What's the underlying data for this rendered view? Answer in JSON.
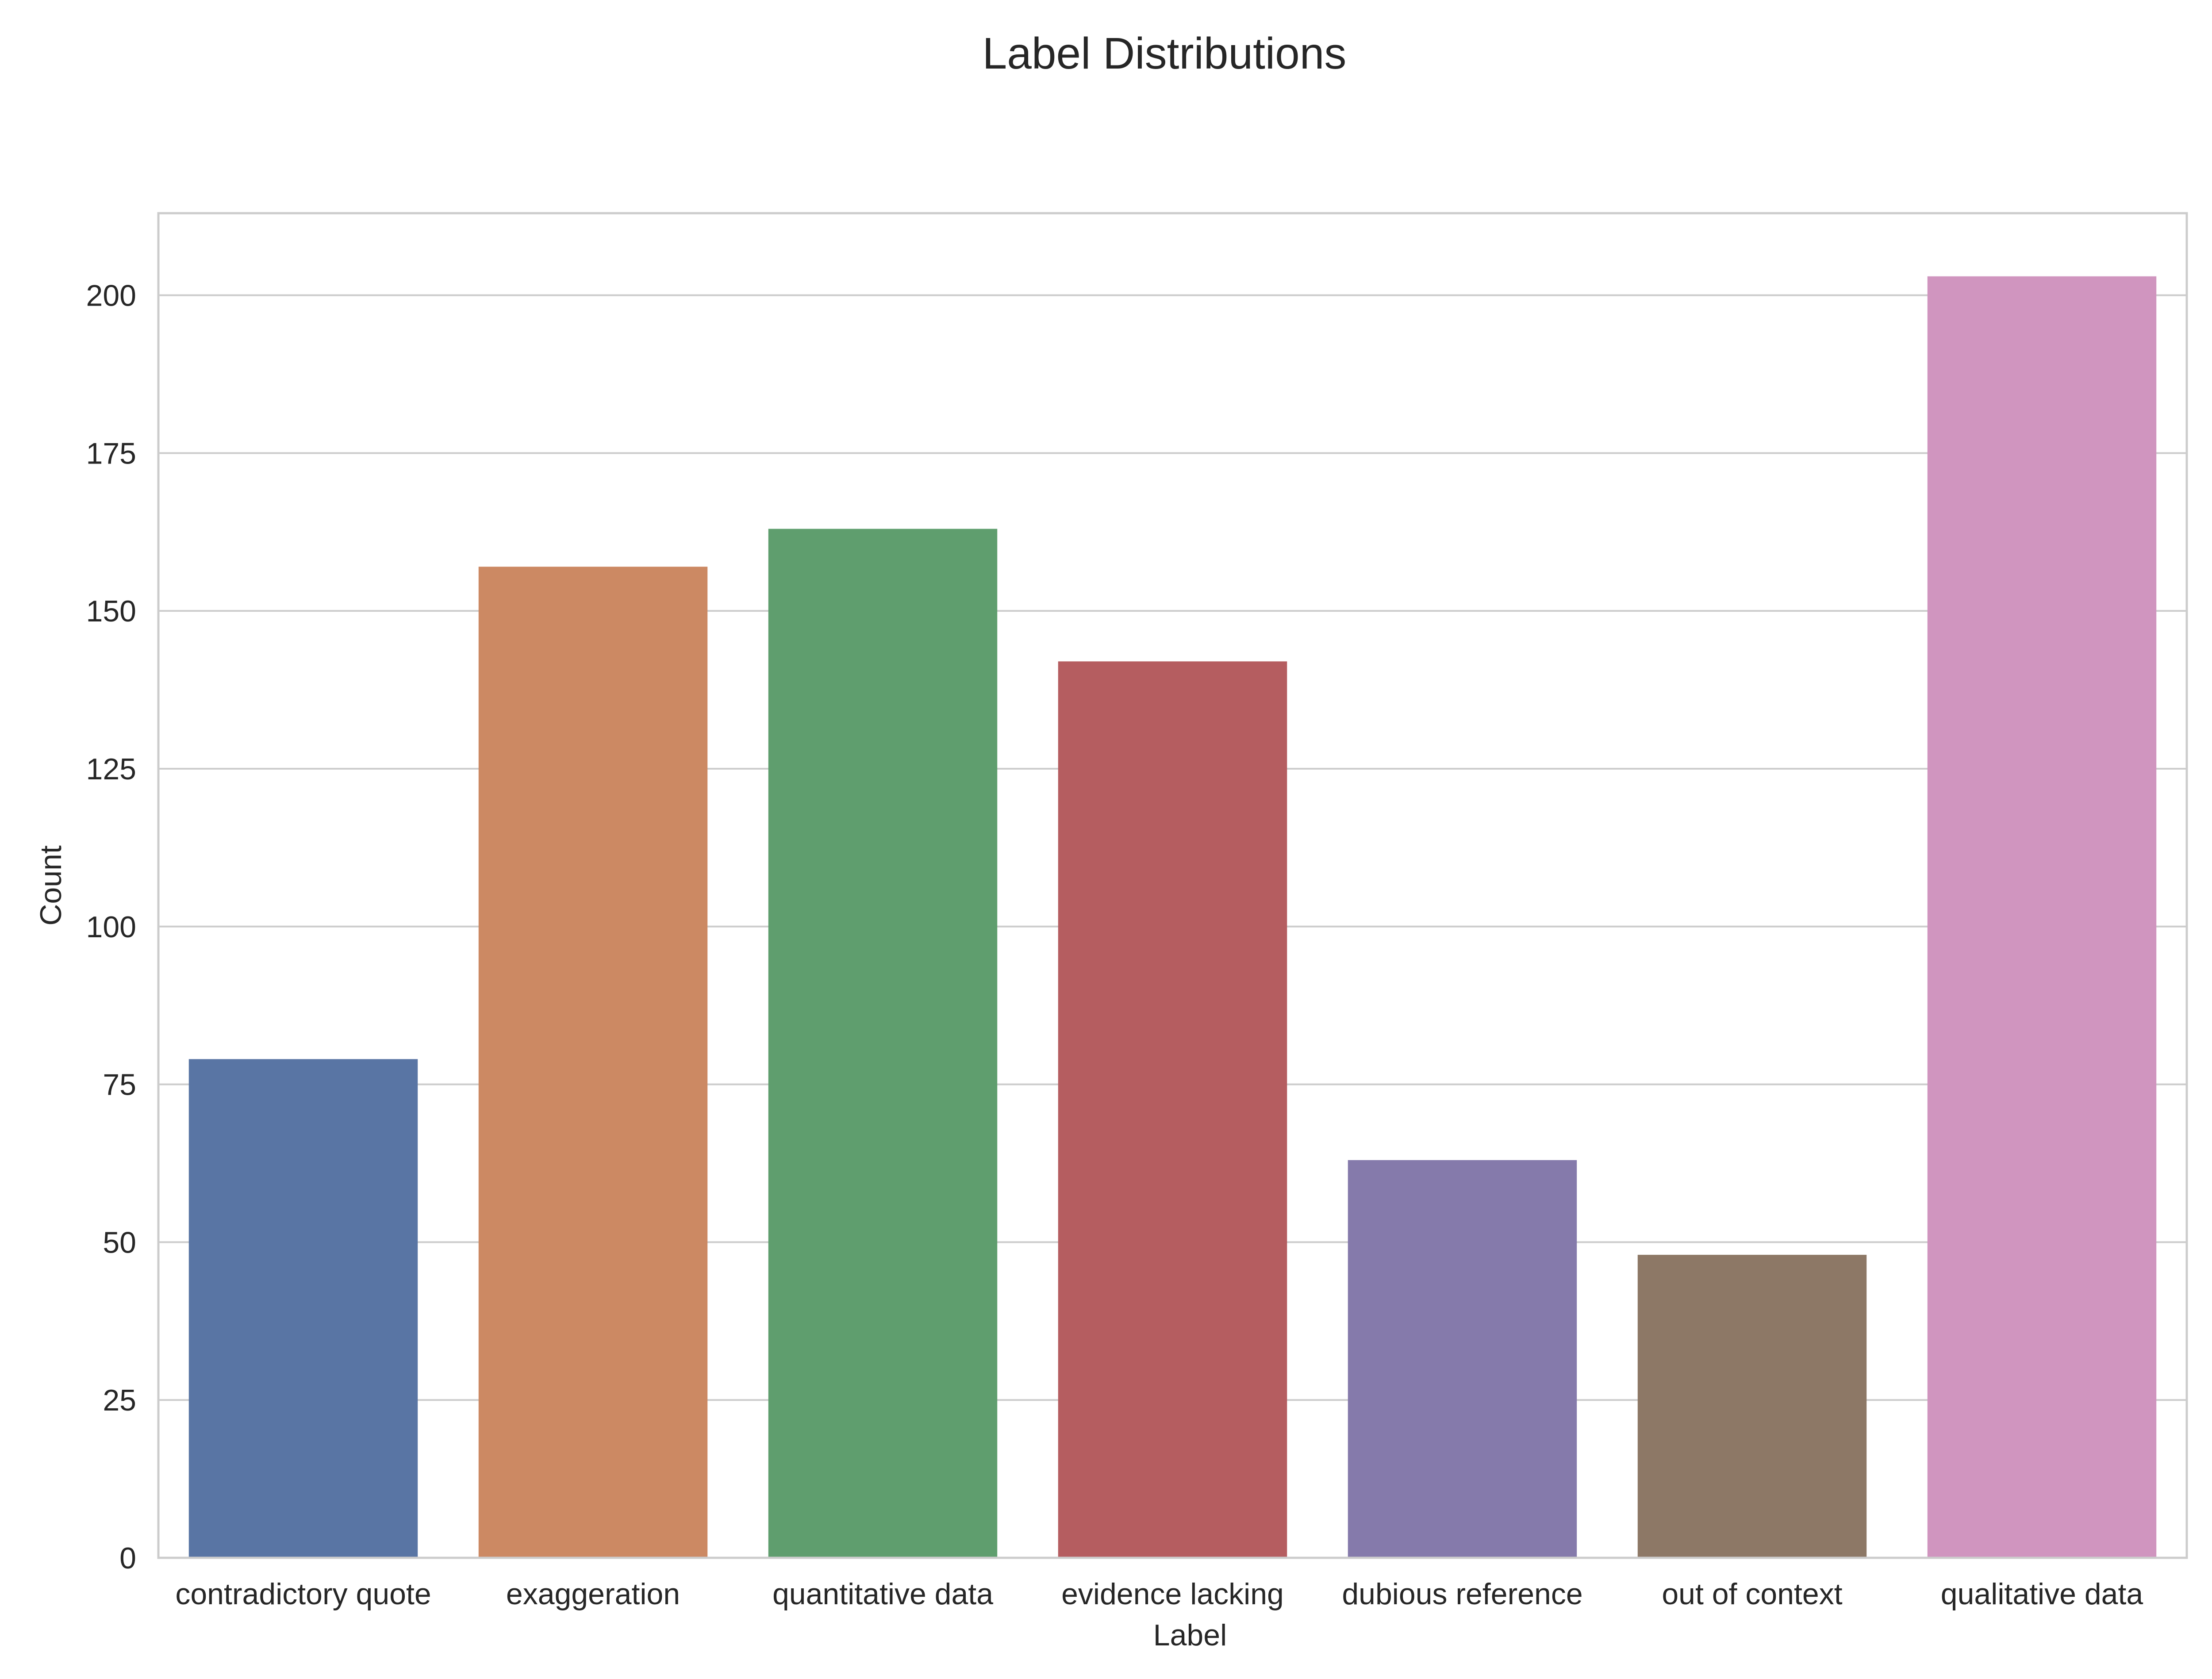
{
  "chart_data": {
    "type": "bar",
    "title": "Label Distributions",
    "xlabel": "Label",
    "ylabel": "Count",
    "categories": [
      "contradictory quote",
      "exaggeration",
      "quantitative data",
      "evidence lacking",
      "dubious reference",
      "out of context",
      "qualitative data"
    ],
    "values": [
      79,
      157,
      163,
      142,
      63,
      48,
      203
    ],
    "colors": [
      "#5975a4",
      "#cc8963",
      "#5f9e6e",
      "#b55d60",
      "#857aab",
      "#8d7866",
      "#d095bf"
    ],
    "ylim": [
      0,
      213
    ],
    "yticks": [
      0,
      25,
      50,
      75,
      100,
      125,
      150,
      175,
      200
    ],
    "grid": true,
    "legend": "none"
  }
}
